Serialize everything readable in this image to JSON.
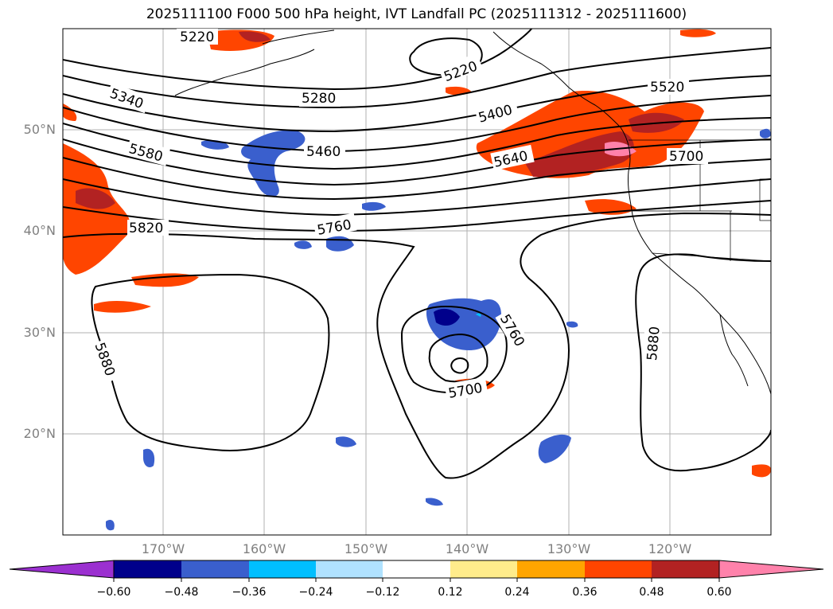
{
  "title": "2025111100 F000 500 hPa height, IVT Landfall PC (2025111312 - 2025111600)",
  "map": {
    "lat_labels": [
      "50°N",
      "40°N",
      "30°N",
      "20°N"
    ],
    "lon_labels": [
      "170°W",
      "160°W",
      "150°W",
      "140°W",
      "130°W",
      "120°W"
    ],
    "contour_labels": [
      "5220",
      "5220",
      "5340",
      "5280",
      "5400",
      "5520",
      "5460",
      "5580",
      "5640",
      "5700",
      "5760",
      "5820",
      "5760",
      "5700",
      "5880",
      "5880"
    ]
  },
  "colorbar": {
    "ticks": [
      "−0.60",
      "−0.48",
      "−0.36",
      "−0.24",
      "−0.12",
      "0.12",
      "0.24",
      "0.36",
      "0.48",
      "0.60"
    ],
    "colors": [
      "#9b30d0",
      "#00008b",
      "#3a5fcd",
      "#00bfff",
      "#b0e2ff",
      "#ffffff",
      "#ffec8b",
      "#ffa500",
      "#ff4500",
      "#b22222",
      "#ff82ab"
    ]
  }
}
